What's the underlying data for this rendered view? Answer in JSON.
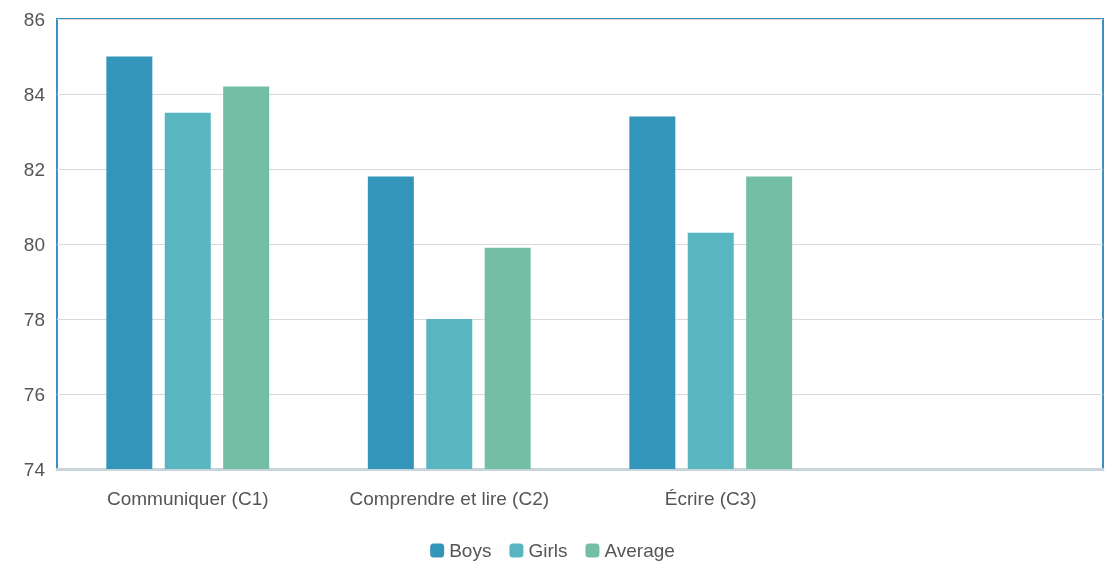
{
  "chart_data": {
    "type": "bar",
    "categories": [
      "Communiquer (C1)",
      "Comprendre et lire (C2)",
      "Écrire (C3)",
      null
    ],
    "series": [
      {
        "name": "Boys",
        "color": "#3495bb",
        "values": [
          85.0,
          81.8,
          83.4,
          null
        ]
      },
      {
        "name": "Girls",
        "color": "#57b6bf",
        "values": [
          83.5,
          78.0,
          80.3,
          null
        ]
      },
      {
        "name": "Average",
        "color": "#74bea6",
        "values": [
          84.2,
          79.9,
          81.8,
          null
        ]
      }
    ],
    "ylim": [
      74,
      86
    ],
    "yticks": [
      74,
      76,
      78,
      80,
      82,
      84,
      86
    ],
    "grid": "y",
    "legend": "bottom"
  }
}
